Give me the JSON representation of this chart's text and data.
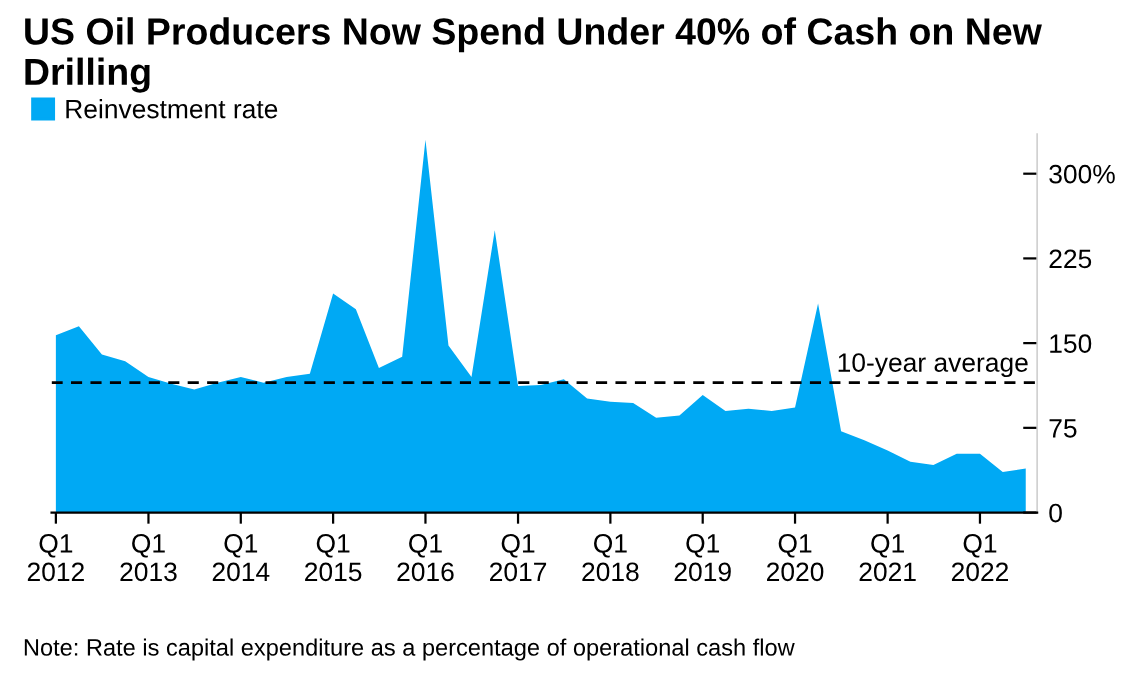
{
  "chart_data": {
    "type": "area",
    "title": "US Oil Producers Now Spend Under 40% of Cash on New Drilling",
    "x": [
      "2012-01",
      "2012-04",
      "2012-07",
      "2012-10",
      "2013-01",
      "2013-04",
      "2013-07",
      "2013-10",
      "2014-01",
      "2014-04",
      "2014-07",
      "2014-10",
      "2015-01",
      "2015-04",
      "2015-07",
      "2015-10",
      "2016-01",
      "2016-04",
      "2016-07",
      "2016-10",
      "2017-01",
      "2017-04",
      "2017-07",
      "2017-10",
      "2018-01",
      "2018-04",
      "2018-07",
      "2018-10",
      "2019-01",
      "2019-04",
      "2019-07",
      "2019-10",
      "2020-01",
      "2020-04",
      "2020-07",
      "2020-10",
      "2021-01",
      "2021-04",
      "2021-07",
      "2021-10",
      "2022-01",
      "2022-04",
      "2022-07"
    ],
    "series": [
      {
        "name": "Reinvestment rate",
        "color": "#00a9f4",
        "values": [
          157,
          165,
          140,
          134,
          120,
          114,
          109,
          115,
          120,
          115,
          120,
          123,
          194,
          180,
          128,
          138,
          330,
          148,
          120,
          250,
          112,
          113,
          118,
          101,
          98,
          97,
          84,
          86,
          104,
          90,
          92,
          90,
          93,
          185,
          72,
          64,
          55,
          45,
          42,
          52,
          52,
          36,
          39
        ]
      }
    ],
    "xlim": [
      "2011-12-15",
      "2022-08-15"
    ],
    "xticks": [
      {
        "value": "2012-01",
        "label": "Q1\n2012"
      },
      {
        "value": "2013-01",
        "label": "Q1\n2013"
      },
      {
        "value": "2014-01",
        "label": "Q1\n2014"
      },
      {
        "value": "2015-01",
        "label": "Q1\n2015"
      },
      {
        "value": "2016-01",
        "label": "Q1\n2016"
      },
      {
        "value": "2017-01",
        "label": "Q1\n2017"
      },
      {
        "value": "2018-01",
        "label": "Q1\n2018"
      },
      {
        "value": "2019-01",
        "label": "Q1\n2019"
      },
      {
        "value": "2020-01",
        "label": "Q1\n2020"
      },
      {
        "value": "2021-01",
        "label": "Q1\n2021"
      },
      {
        "value": "2022-01",
        "label": "Q1\n2022"
      }
    ],
    "ylim": [
      0,
      335
    ],
    "yticks": [
      0,
      75,
      150,
      225,
      {
        "value": 300,
        "label": "300%"
      }
    ],
    "ref_lines": [
      {
        "axis": "y",
        "value": 115,
        "label": "10-year average",
        "color": "#000000",
        "line_style": "dashed"
      }
    ],
    "legend": "top left",
    "grid": false,
    "annotations": [
      "Note: Rate is capital expenditure as a percentage of operational cash flow"
    ]
  }
}
